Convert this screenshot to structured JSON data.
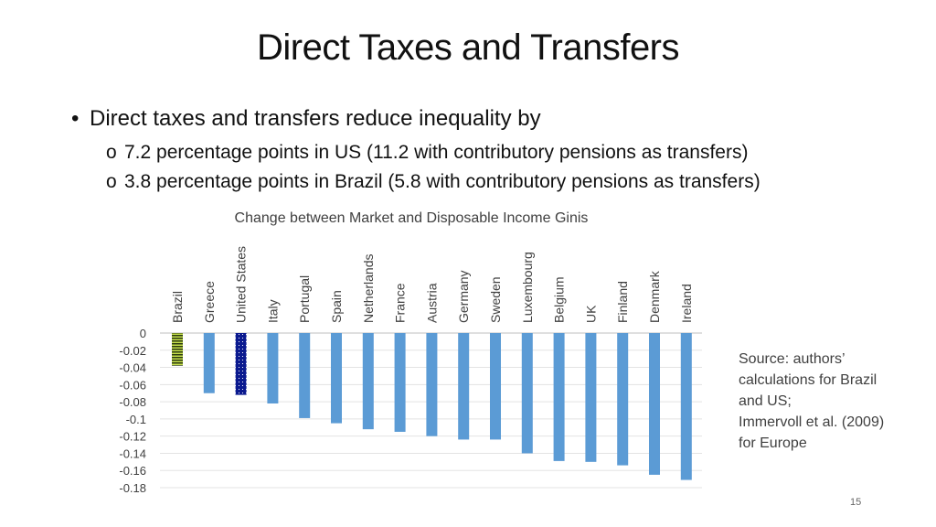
{
  "slide": {
    "title": "Direct Taxes and Transfers",
    "bullet": "Direct taxes and transfers reduce inequality by",
    "sub_marker": "o",
    "sub_bullets": [
      "7.2 percentage points in US (11.2 with contributory pensions as transfers)",
      "3.8 percentage points in Brazil (5.8 with contributory pensions as transfers)"
    ],
    "source_lines": [
      "Source: authors’",
      "calculations for Brazil",
      "and US;",
      "Immervoll et al. (2009)",
      "for Europe"
    ],
    "page_number": "15"
  },
  "chart_data": {
    "type": "bar",
    "title": "Change between Market and Disposable Income Ginis",
    "xlabel": "",
    "ylabel": "",
    "categories": [
      "Brazil",
      "Greece",
      "United States",
      "Italy",
      "Portugal",
      "Spain",
      "Netherlands",
      "France",
      "Austria",
      "Germany",
      "Sweden",
      "Luxembourg",
      "Belgium",
      "UK",
      "Finland",
      "Denmark",
      "Ireland"
    ],
    "values": [
      -0.038,
      -0.07,
      -0.072,
      -0.082,
      -0.099,
      -0.105,
      -0.112,
      -0.115,
      -0.12,
      -0.124,
      -0.124,
      -0.14,
      -0.149,
      -0.15,
      -0.154,
      -0.165,
      -0.171
    ],
    "ylim": [
      -0.18,
      0
    ],
    "yticks": [
      0,
      -0.02,
      -0.04,
      -0.06,
      -0.08,
      -0.1,
      -0.12,
      -0.14,
      -0.16,
      -0.18
    ],
    "grid": true,
    "legend": "none",
    "bar_color": "#5b9bd5",
    "highlight_styles": {
      "Brazil": "lime-stripes",
      "United States": "navy-dots"
    }
  }
}
